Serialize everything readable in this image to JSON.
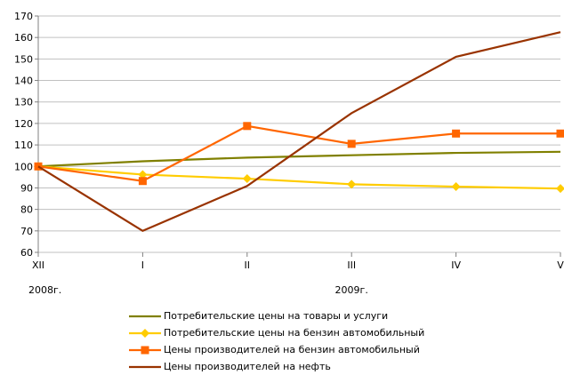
{
  "chart_data": {
    "type": "line",
    "title": "",
    "xlabel": "",
    "ylabel": "",
    "categories": [
      "XII",
      "I",
      "II",
      "III",
      "IV",
      "V"
    ],
    "year_labels": [
      {
        "category": "XII",
        "text": "2008г."
      },
      {
        "category": "III",
        "text": "2009г."
      }
    ],
    "ylim": [
      60,
      170
    ],
    "yticks": [
      60,
      70,
      80,
      90,
      100,
      110,
      120,
      130,
      140,
      150,
      160,
      170
    ],
    "grid": "horizontal",
    "legend_position": "bottom",
    "series": [
      {
        "name": "Потребительские цены на товары и услуги",
        "color": "#808000",
        "marker": "none",
        "values": [
          100,
          102.4,
          104.1,
          105.2,
          106.3,
          106.8
        ]
      },
      {
        "name": "Потребительские цены на бензин автомобильный",
        "color": "#ffcc00",
        "marker": "diamond",
        "values": [
          100,
          96.2,
          94.3,
          91.7,
          90.6,
          89.7
        ]
      },
      {
        "name": "Цены производителей на бензин автомобильный",
        "color": "#ff6600",
        "marker": "square",
        "values": [
          100,
          93.2,
          118.8,
          110.5,
          115.3,
          115.3
        ]
      },
      {
        "name": "Цены производителей на нефть",
        "color": "#993300",
        "marker": "none",
        "values": [
          100,
          70.0,
          90.9,
          124.8,
          151.0,
          162.5
        ]
      }
    ]
  }
}
